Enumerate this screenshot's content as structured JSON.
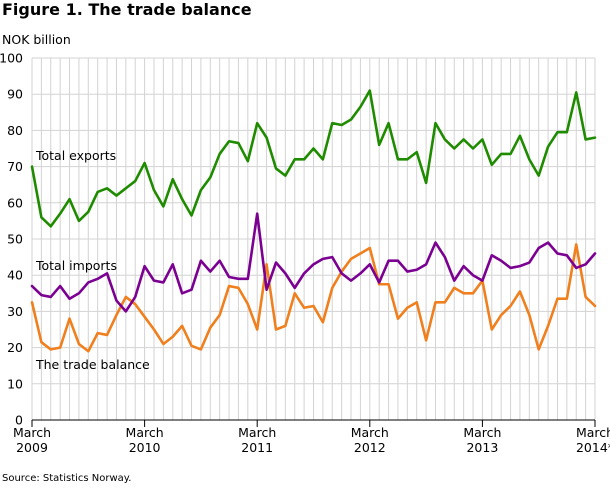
{
  "title": "Figure 1. The trade balance",
  "source": "Source: Statistics Norway.",
  "chart_data": {
    "type": "line",
    "ylabel": "NOK billion",
    "ylim": [
      0,
      100
    ],
    "yticks": [
      0,
      10,
      20,
      30,
      40,
      50,
      60,
      70,
      80,
      90,
      100
    ],
    "xticks": [
      {
        "line1": "March",
        "line2": "2009",
        "index": 0
      },
      {
        "line1": "March",
        "line2": "2010",
        "index": 12
      },
      {
        "line1": "March",
        "line2": "2011",
        "index": 24
      },
      {
        "line1": "March",
        "line2": "2012",
        "index": 36
      },
      {
        "line1": "March",
        "line2": "2013",
        "index": 48
      },
      {
        "line1": "March",
        "line2": "2014*",
        "index": 60
      }
    ],
    "series": [
      {
        "name": "Total exports",
        "color": "#1f8c00",
        "values": [
          70,
          56,
          53.5,
          57,
          61,
          55,
          57.5,
          63,
          64,
          62,
          64,
          66,
          71,
          63.5,
          59,
          66.5,
          61,
          56.5,
          63.5,
          67,
          73.5,
          77,
          76.5,
          71.5,
          82,
          78,
          69.5,
          67.5,
          72,
          72,
          75,
          72,
          82,
          81.5,
          83,
          86.5,
          91,
          76,
          82,
          72,
          72,
          74,
          65.5,
          82,
          77.5,
          75,
          77.5,
          75,
          77.5,
          70.5,
          73.5,
          73.5,
          78.5,
          72,
          67.5,
          75.5,
          79.5,
          79.5,
          90.5,
          77.5,
          78
        ]
      },
      {
        "name": "Total imports",
        "color": "#7b0092",
        "values": [
          37,
          34.5,
          34,
          37,
          33.5,
          35,
          38,
          39,
          40.5,
          33,
          30,
          34,
          42.5,
          38.5,
          38,
          43,
          35,
          36,
          44,
          41,
          44,
          39.5,
          39,
          39,
          57,
          36,
          43.5,
          40.5,
          36.5,
          40.5,
          43,
          44.5,
          45,
          40.5,
          38.5,
          40.5,
          43,
          38,
          44,
          44,
          41,
          41.5,
          43,
          49,
          45,
          38.5,
          42.5,
          40,
          38.5,
          45.5,
          44,
          42,
          42.5,
          43.5,
          47.5,
          49,
          46,
          45.5,
          42,
          43,
          46
        ]
      },
      {
        "name": "The trade balance",
        "color": "#f07f1e",
        "values": [
          32.5,
          21.5,
          19.5,
          20,
          28,
          21,
          19,
          24,
          23.5,
          29,
          34,
          32,
          28.5,
          25,
          21,
          23,
          26,
          20.5,
          19.5,
          25.5,
          29,
          37,
          36.5,
          32,
          25,
          43,
          25,
          26,
          35,
          31,
          31.5,
          27,
          36.5,
          41,
          44.5,
          46,
          47.5,
          37.5,
          37.5,
          28,
          31,
          32.5,
          22,
          32.5,
          32.5,
          36.5,
          35,
          35,
          38.5,
          25,
          29,
          31.5,
          35.5,
          29,
          19.5,
          26,
          33.5,
          33.5,
          48.5,
          34,
          31.5
        ]
      }
    ]
  }
}
